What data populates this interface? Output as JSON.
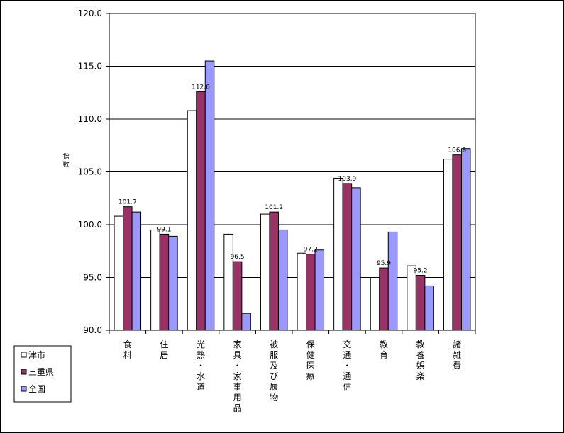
{
  "chart_data": {
    "type": "bar",
    "title": "",
    "ylabel": "指数",
    "xlabel": "",
    "ylim": [
      90.0,
      120.0
    ],
    "yticks": [
      "90.0",
      "95.0",
      "100.0",
      "105.0",
      "110.0",
      "115.0",
      "120.0"
    ],
    "grid": true,
    "legend_position": "bottom-left",
    "categories": [
      "食料",
      "住居",
      "光熱・水道",
      "家具・家事用品",
      "被服及び履物",
      "保健医療",
      "交通・通信",
      "教育",
      "教養娯楽",
      "諸雑費"
    ],
    "series": [
      {
        "name": "津市",
        "color": "#ffffff",
        "values": [
          100.8,
          99.5,
          110.8,
          99.1,
          101.0,
          97.3,
          104.4,
          95.0,
          96.1,
          106.2
        ]
      },
      {
        "name": "三重県",
        "color": "#993366",
        "values": [
          101.7,
          99.1,
          112.6,
          96.5,
          101.2,
          97.2,
          103.9,
          95.9,
          95.2,
          106.6
        ]
      },
      {
        "name": "全国",
        "color": "#9999ff",
        "values": [
          101.2,
          98.9,
          115.5,
          91.6,
          99.5,
          97.6,
          103.5,
          99.3,
          94.2,
          107.2
        ]
      }
    ],
    "data_labels": {
      "series": "三重県",
      "labels": [
        "101.7",
        "99.1",
        "112.6",
        "96.5",
        "101.2",
        "97.2",
        "103.9",
        "95.9",
        "95.2",
        "106.6"
      ]
    }
  }
}
